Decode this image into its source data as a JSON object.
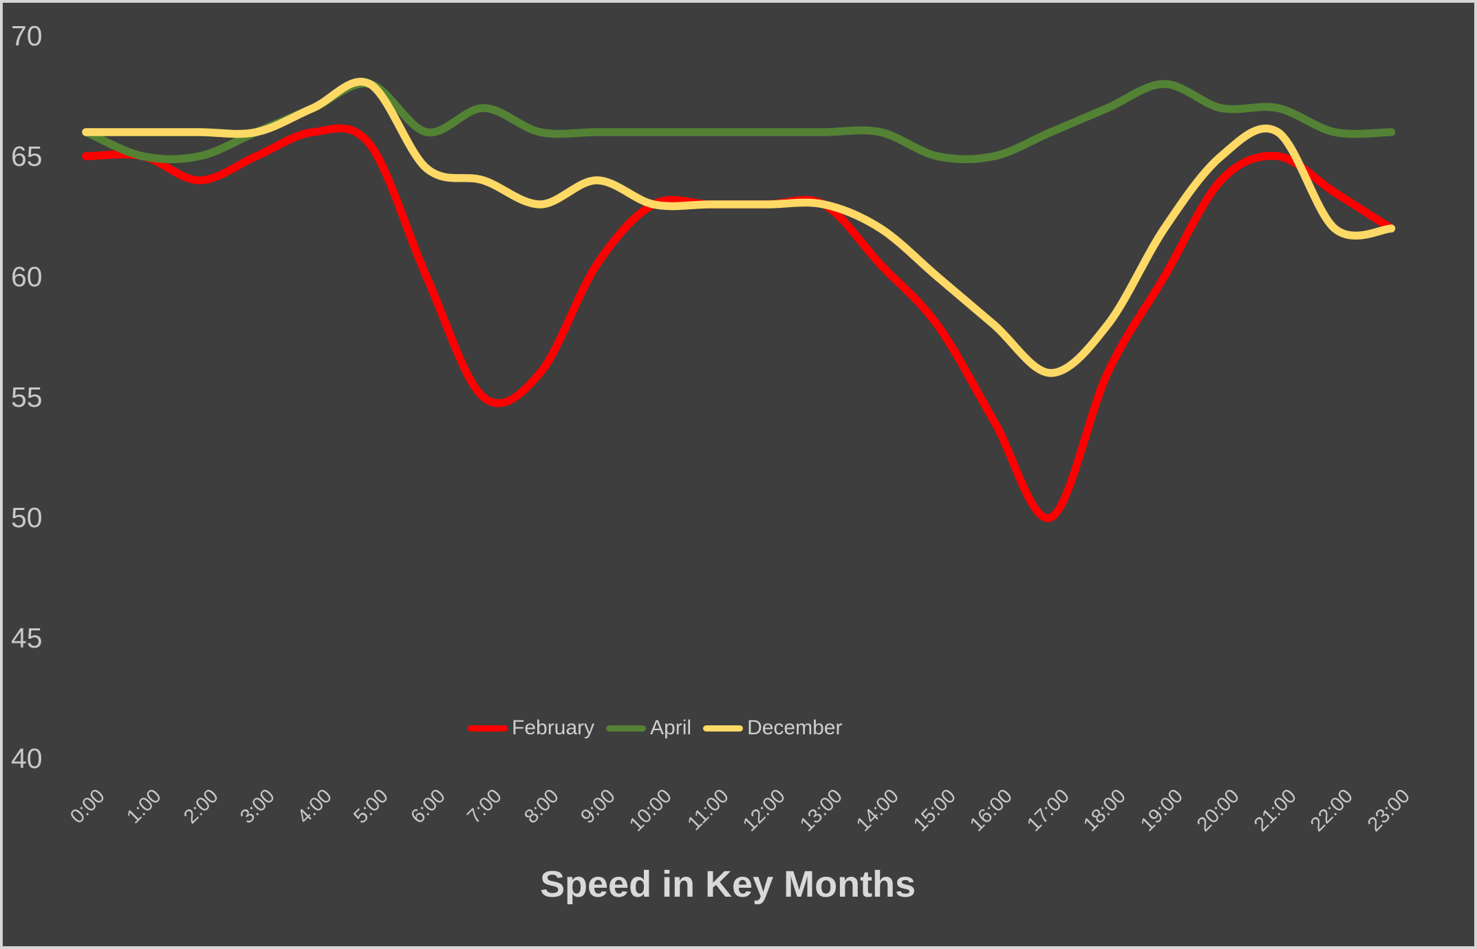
{
  "title": "Speed in Key Months",
  "colors": {
    "background": "#3E3E3E",
    "frame": "#D6D6D6",
    "tick_text": "#C9C9C9",
    "legend_text": "#CFCFCF",
    "title_text": "#D9D9D9",
    "february": "#FF0000",
    "april": "#548235",
    "december": "#FFD966"
  },
  "y_axis": {
    "ticks": [
      "70",
      "65",
      "60",
      "55",
      "50",
      "45",
      "40"
    ],
    "min": 40,
    "max": 70,
    "step": 5
  },
  "legend": {
    "items": [
      {
        "label": "February",
        "color": "#FF0000"
      },
      {
        "label": "April",
        "color": "#548235"
      },
      {
        "label": "December",
        "color": "#FFD966"
      }
    ]
  },
  "chart_data": {
    "type": "line",
    "smooth": true,
    "grid": false,
    "legend_position": "bottom-center",
    "title": "Speed in Key Months",
    "xlabel": "",
    "ylabel": "",
    "ylim": [
      40,
      70
    ],
    "x": [
      "0:00",
      "1:00",
      "2:00",
      "3:00",
      "4:00",
      "5:00",
      "6:00",
      "7:00",
      "8:00",
      "9:00",
      "10:00",
      "11:00",
      "12:00",
      "13:00",
      "14:00",
      "15:00",
      "16:00",
      "17:00",
      "18:00",
      "19:00",
      "20:00",
      "21:00",
      "22:00",
      "23:00"
    ],
    "series": [
      {
        "name": "February",
        "color": "#FF0000",
        "values": [
          65,
          65,
          64,
          65,
          66,
          65.5,
          60,
          55,
          56,
          60.5,
          63,
          63,
          63,
          63,
          60.5,
          58,
          54,
          50,
          56,
          60,
          64,
          65,
          63.5,
          62
        ]
      },
      {
        "name": "April",
        "color": "#548235",
        "values": [
          66,
          65,
          65,
          66,
          67,
          68,
          66,
          67,
          66,
          66,
          66,
          66,
          66,
          66,
          66,
          65,
          65,
          66,
          67,
          68,
          67,
          67,
          66,
          66
        ]
      },
      {
        "name": "December",
        "color": "#FFD966",
        "values": [
          66,
          66,
          66,
          66,
          67,
          68,
          64.5,
          64,
          63,
          64,
          63,
          63,
          63,
          63,
          62,
          60,
          58,
          56,
          58,
          62,
          65,
          66,
          62,
          62
        ]
      }
    ]
  }
}
